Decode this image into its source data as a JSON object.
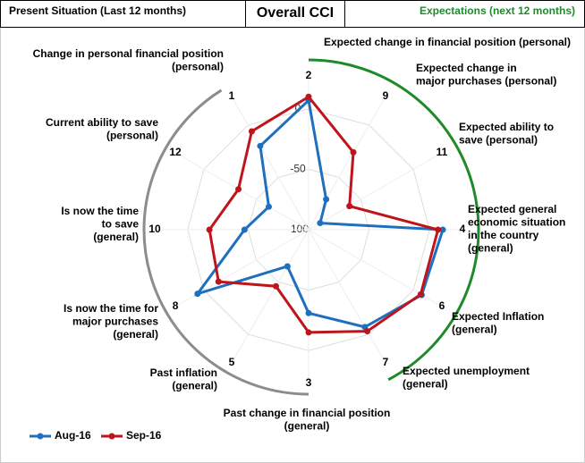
{
  "chart_data": {
    "type": "radar",
    "title": "Overall CCI",
    "header_left": "Present Situation (Last 12 months)",
    "header_right": "Expectations (next 12 months)",
    "categories": [
      "2",
      "9",
      "11",
      "4",
      "6",
      "7",
      "3",
      "5",
      "8",
      "10",
      "12",
      "1"
    ],
    "category_descriptions": [
      [
        "Expected change in financial position (personal)"
      ],
      [
        "Expected change in",
        "major purchases (personal)"
      ],
      [
        "Expected ability to",
        "save (personal)"
      ],
      [
        "Expected general",
        "economic situation",
        "in the country",
        "(general)"
      ],
      [
        "Expected Inflation",
        "(general)"
      ],
      [
        "Expected unemployment",
        "(general)"
      ],
      [
        "Past change in financial position",
        "(general)"
      ],
      [
        "Past inflation",
        "(general)"
      ],
      [
        "Is now the time for",
        "major purchases",
        "(general)"
      ],
      [
        "Is now the time",
        "to save",
        "(general)"
      ],
      [
        "Current ability to save",
        "(personal)"
      ],
      [
        "Change in personal financial position",
        "(personal)"
      ]
    ],
    "rlim": [
      -100,
      25
    ],
    "rticks": [
      -100,
      -50,
      0
    ],
    "series": [
      {
        "name": "Aug-16",
        "color": "#1f6fbf",
        "values": [
          7,
          -71,
          -89,
          11,
          8,
          -7,
          -31,
          -65,
          6,
          -47,
          -62,
          -20
        ]
      },
      {
        "name": "Sep-16",
        "color": "#c0141c",
        "values": [
          10,
          -26,
          -61,
          7,
          7,
          -3,
          -15,
          -46,
          -14,
          -18,
          -33,
          -6
        ]
      }
    ]
  }
}
